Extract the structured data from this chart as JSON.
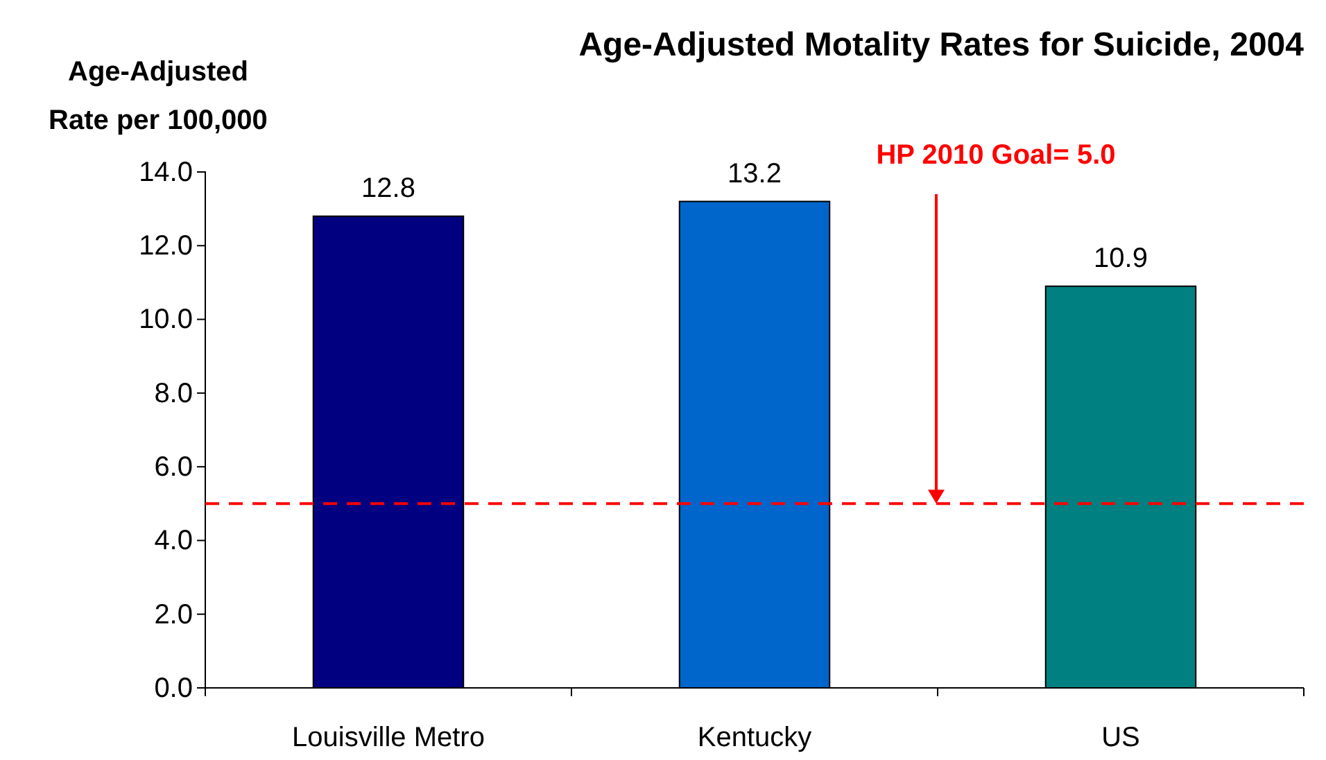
{
  "chart_data": {
    "type": "bar",
    "title": "Age-Adjusted Motality Rates for Suicide, 2004",
    "ylabel": "Age-Adjusted Rate per 100,000",
    "categories": [
      "Louisville Metro",
      "Kentucky",
      "US"
    ],
    "values": [
      12.8,
      13.2,
      10.9
    ],
    "colors": [
      "#000080",
      "#0066cc",
      "#008080"
    ],
    "data_labels": true,
    "ylim": [
      0,
      14
    ],
    "yticks": [
      {
        "value": 0,
        "label": "0.0"
      },
      {
        "value": 2,
        "label": "2.0"
      },
      {
        "value": 4,
        "label": "4.0"
      },
      {
        "value": 6,
        "label": "6.0"
      },
      {
        "value": 8,
        "label": "8.0"
      },
      {
        "value": 10,
        "label": "10.0"
      },
      {
        "value": 12,
        "label": "12.0"
      },
      {
        "value": 14,
        "label": "14.0"
      }
    ],
    "grid": false,
    "ref_lines": [
      {
        "axis": "y",
        "value": 5.0,
        "label": "HP 2010 Goal= 5.0",
        "color": "#ff0000",
        "line_style": "dashed"
      }
    ]
  }
}
